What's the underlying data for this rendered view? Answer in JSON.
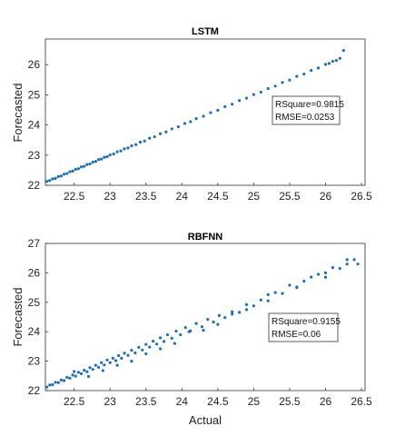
{
  "chart_data": [
    {
      "type": "scatter",
      "title": "LSTM",
      "xlabel": "",
      "ylabel": "Forecasted",
      "xlim": [
        22.1,
        26.55
      ],
      "ylim": [
        22.0,
        26.85
      ],
      "xticks": [
        "22.5",
        "23",
        "23.5",
        "24",
        "24.5",
        "25",
        "25.5",
        "26",
        "26.5"
      ],
      "yticks": [
        "22",
        "23",
        "24",
        "25",
        "26"
      ],
      "annotation": [
        "RSquare=0.9815",
        "RMSE=0.0253"
      ],
      "color": "#1f6fb5",
      "series": [
        {
          "x": [
            22.12,
            22.16,
            22.2,
            22.24,
            22.28,
            22.32,
            22.36,
            22.4,
            22.44,
            22.48,
            22.52,
            22.56,
            22.6,
            22.64,
            22.68,
            22.72,
            22.76,
            22.8,
            22.84,
            22.88,
            22.92,
            22.96,
            23.0,
            23.05,
            23.1,
            23.15,
            23.2,
            23.25,
            23.3,
            23.36,
            23.42,
            23.48,
            23.55,
            23.62,
            23.7,
            23.78,
            23.86,
            23.95,
            24.04,
            24.12,
            24.2,
            24.3,
            24.4,
            24.5,
            24.6,
            24.7,
            24.8,
            24.9,
            25.0,
            25.1,
            25.2,
            25.3,
            25.4,
            25.5,
            25.6,
            25.7,
            25.8,
            25.9,
            26.0,
            26.05,
            26.1,
            26.15,
            26.2,
            26.25
          ],
          "y": [
            22.13,
            22.16,
            22.21,
            22.23,
            22.29,
            22.31,
            22.37,
            22.39,
            22.45,
            22.47,
            22.53,
            22.55,
            22.61,
            22.63,
            22.69,
            22.71,
            22.77,
            22.79,
            22.85,
            22.87,
            22.93,
            22.95,
            23.01,
            23.04,
            23.11,
            23.14,
            23.21,
            23.24,
            23.31,
            23.35,
            23.43,
            23.47,
            23.56,
            23.61,
            23.71,
            23.77,
            23.87,
            23.94,
            24.05,
            24.11,
            24.21,
            24.29,
            24.41,
            24.49,
            24.61,
            24.69,
            24.81,
            24.89,
            25.01,
            25.09,
            25.21,
            25.29,
            25.41,
            25.49,
            25.61,
            25.69,
            25.81,
            25.89,
            26.01,
            26.04,
            26.11,
            26.14,
            26.21,
            26.47
          ]
        }
      ]
    },
    {
      "type": "scatter",
      "title": "RBFNN",
      "xlabel": "Actual",
      "ylabel": "Forecasted",
      "xlim": [
        22.1,
        26.55
      ],
      "ylim": [
        22.0,
        27.0
      ],
      "xticks": [
        "22.5",
        "23",
        "23.5",
        "24",
        "24.5",
        "25",
        "25.5",
        "26",
        "26.5"
      ],
      "yticks": [
        "22",
        "23",
        "24",
        "25",
        "26",
        "27"
      ],
      "annotation": [
        "RSquare=0.9155",
        "RMSE=0.06"
      ],
      "color": "#1f6fb5",
      "series": [
        {
          "x": [
            22.12,
            22.16,
            22.2,
            22.24,
            22.28,
            22.32,
            22.36,
            22.4,
            22.44,
            22.48,
            22.52,
            22.56,
            22.6,
            22.64,
            22.68,
            22.72,
            22.76,
            22.8,
            22.84,
            22.88,
            22.92,
            22.96,
            23.0,
            23.04,
            23.08,
            23.12,
            23.16,
            23.2,
            23.25,
            23.3,
            23.35,
            23.4,
            23.45,
            23.5,
            23.55,
            23.6,
            23.65,
            23.7,
            23.75,
            23.8,
            23.86,
            23.92,
            23.98,
            24.05,
            24.12,
            24.2,
            24.28,
            24.36,
            24.44,
            24.52,
            24.6,
            24.7,
            24.8,
            24.9,
            25.0,
            25.1,
            25.2,
            25.3,
            25.4,
            25.5,
            25.6,
            25.7,
            25.8,
            25.9,
            26.0,
            26.1,
            26.2,
            26.3,
            26.4,
            26.45,
            22.5,
            22.7,
            22.9,
            23.1,
            23.3,
            23.5,
            23.7,
            23.9,
            24.1,
            24.3,
            24.5,
            24.7,
            24.9,
            25.2,
            25.6,
            26.0,
            26.3
          ],
          "y": [
            22.12,
            22.19,
            22.2,
            22.28,
            22.27,
            22.36,
            22.34,
            22.45,
            22.42,
            22.53,
            22.49,
            22.62,
            22.57,
            22.69,
            22.64,
            22.78,
            22.72,
            22.86,
            22.79,
            22.95,
            22.87,
            23.04,
            22.95,
            23.1,
            23.02,
            23.19,
            23.1,
            23.27,
            23.2,
            23.37,
            23.28,
            23.47,
            23.38,
            23.57,
            23.48,
            23.68,
            23.58,
            23.79,
            23.67,
            23.9,
            23.78,
            24.02,
            23.9,
            24.14,
            24.03,
            24.28,
            24.17,
            24.42,
            24.33,
            24.55,
            24.48,
            24.68,
            24.66,
            24.92,
            24.88,
            25.08,
            25.26,
            25.33,
            25.3,
            25.58,
            25.52,
            25.72,
            25.86,
            25.95,
            26.0,
            26.18,
            26.15,
            26.3,
            26.45,
            26.3,
            22.65,
            22.48,
            22.68,
            22.86,
            23.0,
            23.25,
            23.42,
            23.6,
            24.0,
            24.05,
            24.25,
            24.6,
            24.75,
            25.05,
            25.5,
            25.85,
            26.45
          ]
        }
      ]
    }
  ]
}
